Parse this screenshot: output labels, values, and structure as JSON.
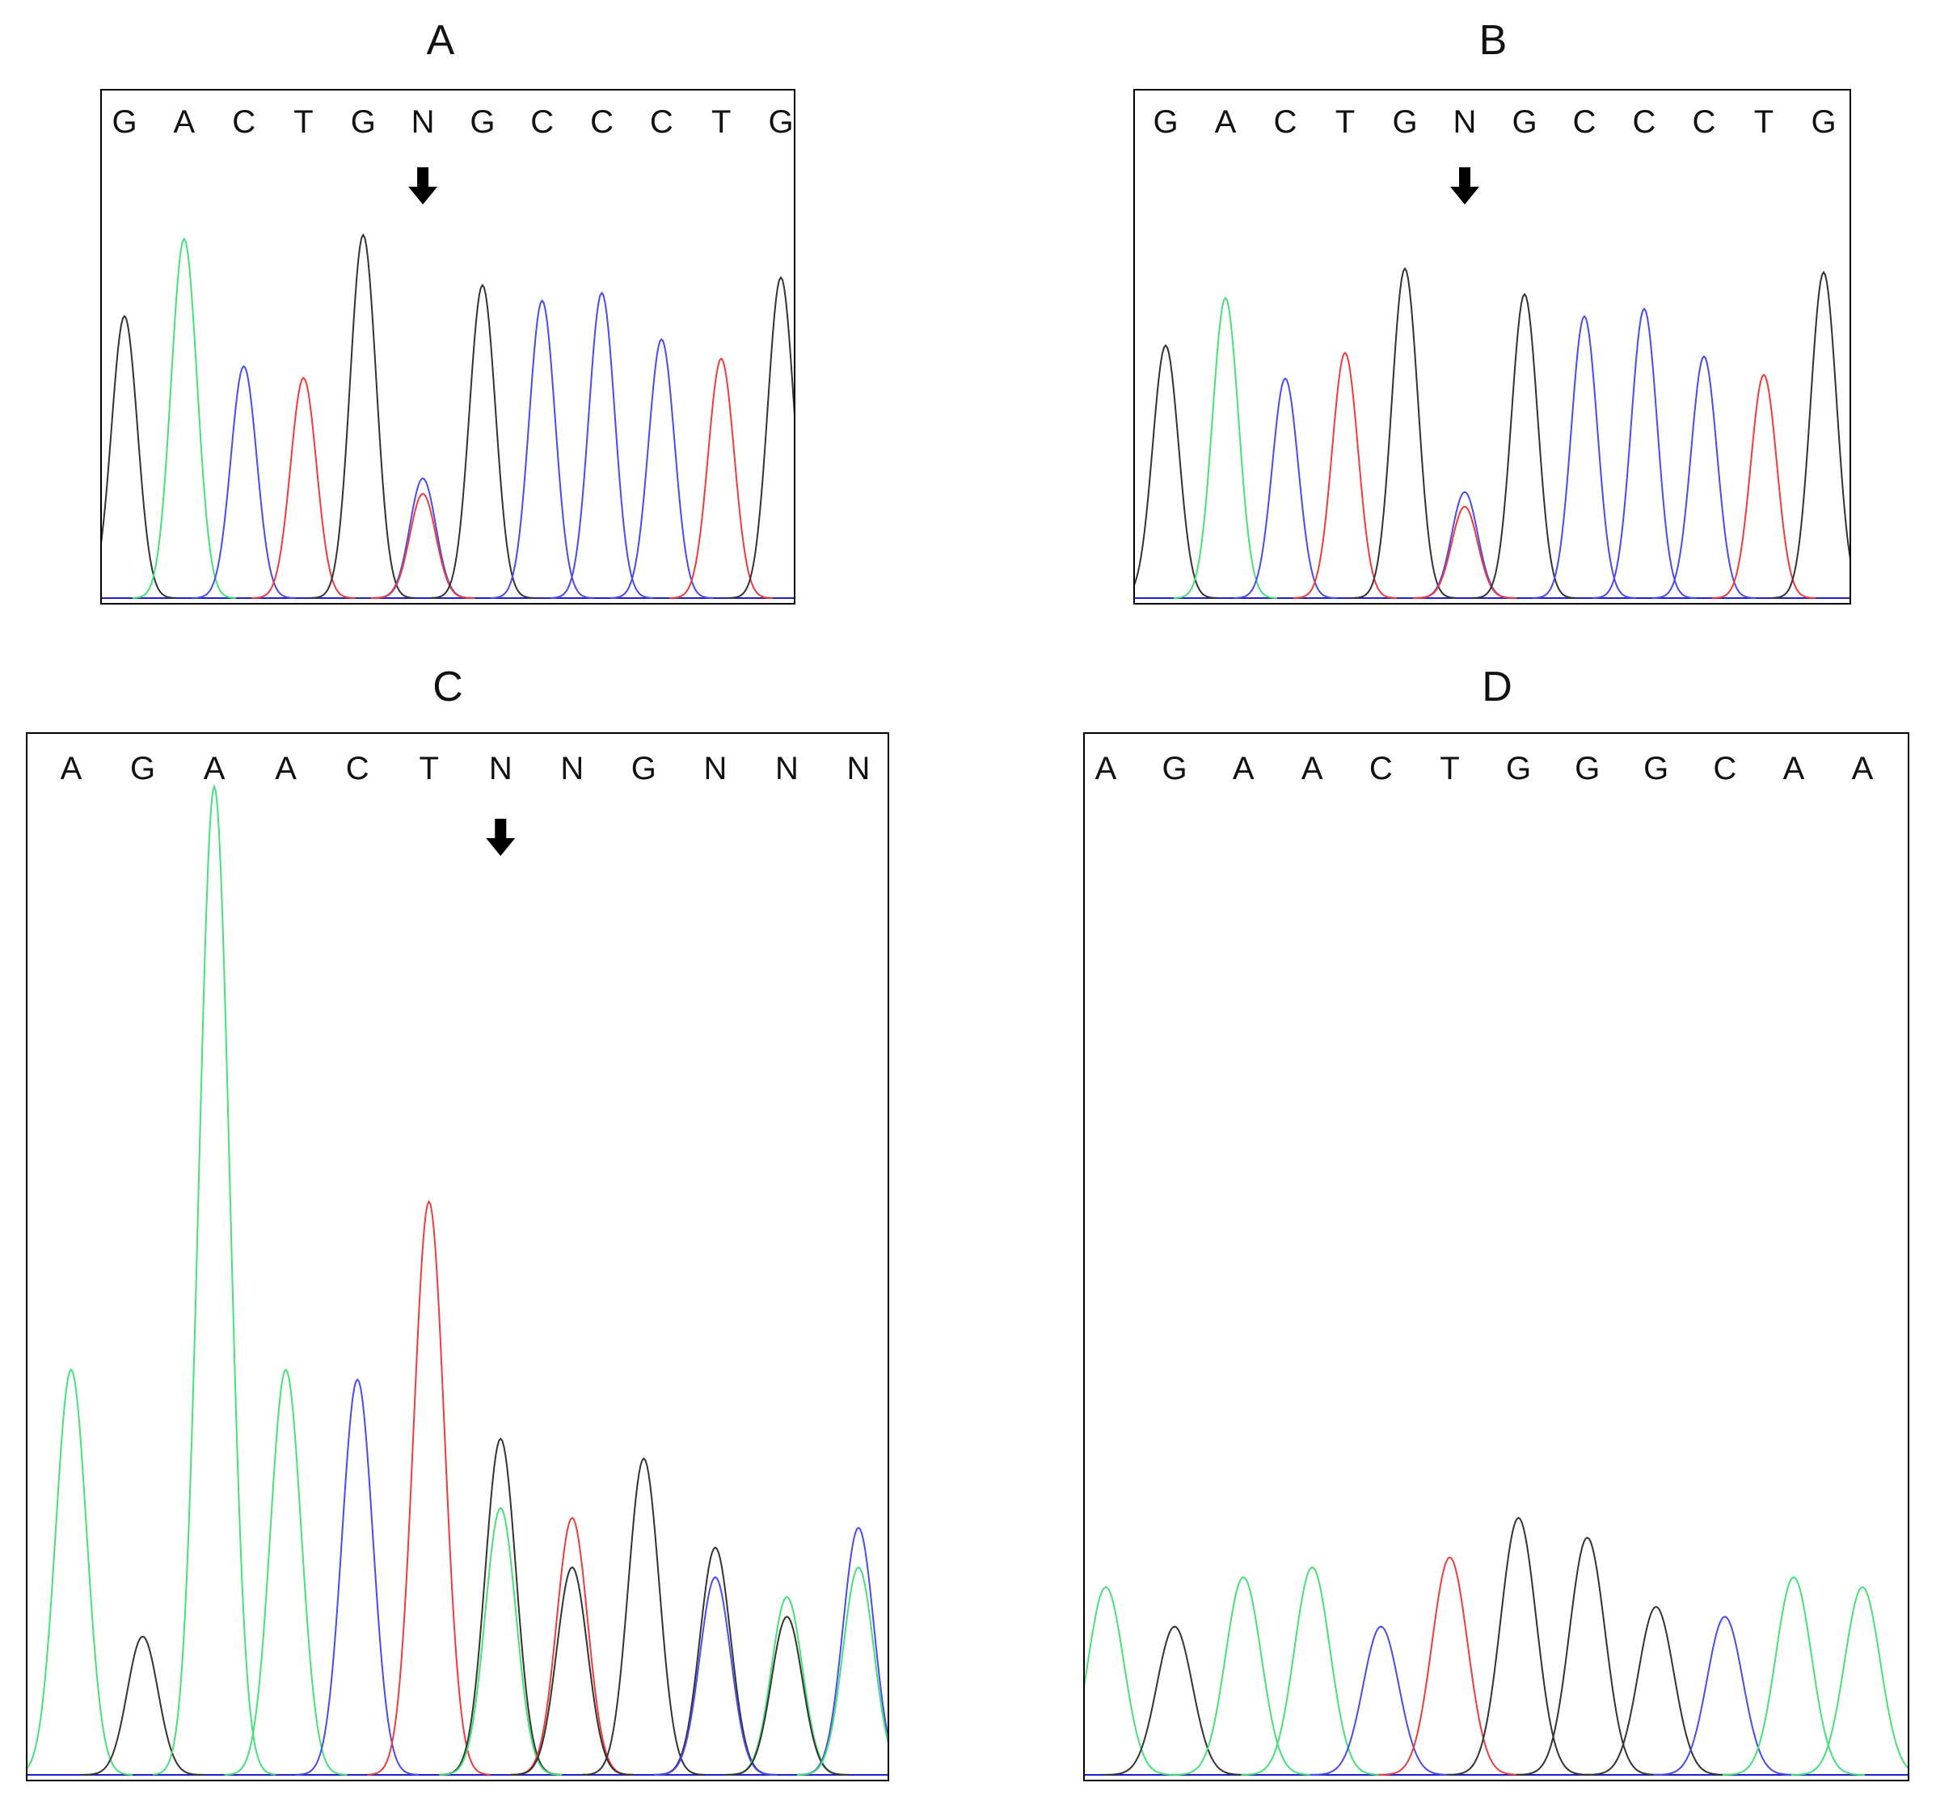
{
  "trace_colors": {
    "A": "#46e07a",
    "C": "#4a4af0",
    "G": "#333333",
    "T": "#ee3b3b",
    "baseline": "#2020c8"
  },
  "chart_data": [
    {
      "panel": "A",
      "type": "line",
      "bases": [
        "G",
        "A",
        "C",
        "T",
        "G",
        "N",
        "G",
        "C",
        "C",
        "C",
        "T",
        "G"
      ],
      "arrow_index": 5,
      "ylim": [
        0,
        100
      ],
      "peaks": [
        {
          "b": "G",
          "pos": 0,
          "h": 73
        },
        {
          "b": "A",
          "pos": 1,
          "h": 93
        },
        {
          "b": "C",
          "pos": 2,
          "h": 60
        },
        {
          "b": "T",
          "pos": 3,
          "h": 57
        },
        {
          "b": "G",
          "pos": 4,
          "h": 94
        },
        {
          "b": "C",
          "pos": 5,
          "h": 31
        },
        {
          "b": "T",
          "pos": 5,
          "h": 27
        },
        {
          "b": "G",
          "pos": 6,
          "h": 81
        },
        {
          "b": "C",
          "pos": 7,
          "h": 77
        },
        {
          "b": "C",
          "pos": 8,
          "h": 79
        },
        {
          "b": "C",
          "pos": 9,
          "h": 67
        },
        {
          "b": "T",
          "pos": 10,
          "h": 62
        },
        {
          "b": "G",
          "pos": 11,
          "h": 83
        }
      ]
    },
    {
      "panel": "B",
      "type": "line",
      "bases": [
        "G",
        "A",
        "C",
        "T",
        "G",
        "N",
        "G",
        "C",
        "C",
        "C",
        "T",
        "G"
      ],
      "arrow_index": 5,
      "ylim": [
        0,
        100
      ],
      "peaks": [
        {
          "b": "G",
          "pos": 0,
          "h": 69
        },
        {
          "b": "A",
          "pos": 1,
          "h": 82
        },
        {
          "b": "C",
          "pos": 2,
          "h": 60
        },
        {
          "b": "T",
          "pos": 3,
          "h": 67
        },
        {
          "b": "G",
          "pos": 4,
          "h": 90
        },
        {
          "b": "C",
          "pos": 5,
          "h": 29
        },
        {
          "b": "T",
          "pos": 5,
          "h": 25
        },
        {
          "b": "G",
          "pos": 6,
          "h": 83
        },
        {
          "b": "C",
          "pos": 7,
          "h": 77
        },
        {
          "b": "C",
          "pos": 8,
          "h": 79
        },
        {
          "b": "C",
          "pos": 9,
          "h": 66
        },
        {
          "b": "T",
          "pos": 10,
          "h": 61
        },
        {
          "b": "G",
          "pos": 11,
          "h": 89
        }
      ]
    },
    {
      "panel": "C",
      "type": "line",
      "bases": [
        "A",
        "G",
        "A",
        "A",
        "C",
        "T",
        "N",
        "N",
        "G",
        "N",
        "N",
        "N"
      ],
      "arrow_index": 6,
      "ylim": [
        0,
        100
      ],
      "peaks": [
        {
          "b": "A",
          "pos": 0,
          "h": 41
        },
        {
          "b": "G",
          "pos": 1,
          "h": 14
        },
        {
          "b": "A",
          "pos": 2,
          "h": 100
        },
        {
          "b": "A",
          "pos": 3,
          "h": 41
        },
        {
          "b": "C",
          "pos": 4,
          "h": 40
        },
        {
          "b": "T",
          "pos": 5,
          "h": 58
        },
        {
          "b": "G",
          "pos": 6,
          "h": 34
        },
        {
          "b": "A",
          "pos": 6,
          "h": 27
        },
        {
          "b": "T",
          "pos": 7,
          "h": 26
        },
        {
          "b": "G",
          "pos": 7,
          "h": 21
        },
        {
          "b": "G",
          "pos": 8,
          "h": 32
        },
        {
          "b": "G",
          "pos": 9,
          "h": 23
        },
        {
          "b": "C",
          "pos": 9,
          "h": 20
        },
        {
          "b": "A",
          "pos": 10,
          "h": 18
        },
        {
          "b": "G",
          "pos": 10,
          "h": 16
        },
        {
          "b": "C",
          "pos": 11,
          "h": 25
        },
        {
          "b": "A",
          "pos": 11,
          "h": 21
        }
      ]
    },
    {
      "panel": "D",
      "type": "line",
      "bases": [
        "A",
        "G",
        "A",
        "A",
        "C",
        "T",
        "G",
        "G",
        "G",
        "C",
        "A",
        "A"
      ],
      "ylim": [
        0,
        100
      ],
      "peaks": [
        {
          "b": "A",
          "pos": 0,
          "h": 19
        },
        {
          "b": "G",
          "pos": 1,
          "h": 15
        },
        {
          "b": "A",
          "pos": 2,
          "h": 20
        },
        {
          "b": "A",
          "pos": 3,
          "h": 21
        },
        {
          "b": "C",
          "pos": 4,
          "h": 15
        },
        {
          "b": "T",
          "pos": 5,
          "h": 22
        },
        {
          "b": "G",
          "pos": 6,
          "h": 26
        },
        {
          "b": "G",
          "pos": 7,
          "h": 24
        },
        {
          "b": "G",
          "pos": 8,
          "h": 17
        },
        {
          "b": "C",
          "pos": 9,
          "h": 16
        },
        {
          "b": "A",
          "pos": 10,
          "h": 20
        },
        {
          "b": "A",
          "pos": 11,
          "h": 19
        }
      ]
    }
  ]
}
